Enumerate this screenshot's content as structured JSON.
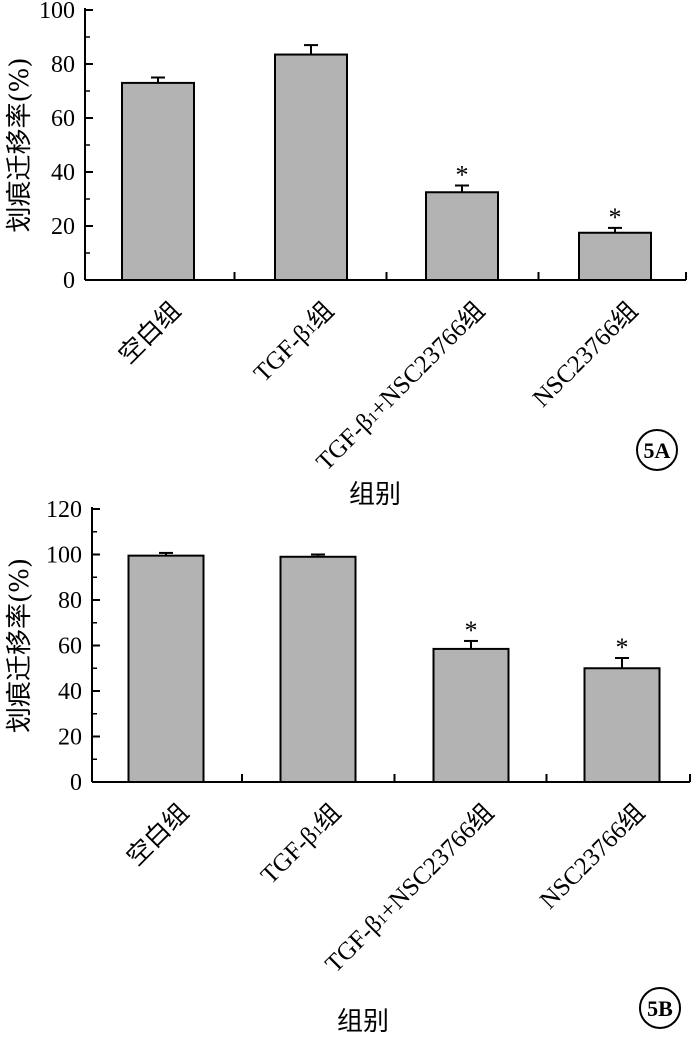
{
  "chart_data": [
    {
      "type": "bar",
      "panel_label": "5A",
      "ylabel": "划痕迁移率(%)",
      "xlabel": "组别",
      "ylim": [
        0,
        100
      ],
      "yticks": [
        "0",
        "20",
        "40",
        "60",
        "80",
        "100"
      ],
      "categories": [
        {
          "text": "空白组"
        },
        {
          "text": "TGF-β",
          "sub": "1",
          "tail": "组"
        },
        {
          "text": "TGF-β",
          "sub": "1",
          "tail": "+NSC23766组"
        },
        {
          "text": "NSC23766组"
        }
      ],
      "values": [
        73,
        83.5,
        32.5,
        17.5
      ],
      "errors": [
        2,
        3.5,
        2.5,
        1.8
      ],
      "significance": [
        "",
        "",
        "*",
        "*"
      ],
      "bar_color": "#b3b3b3"
    },
    {
      "type": "bar",
      "panel_label": "5B",
      "ylabel": "划痕迁移率(%)",
      "xlabel": "组别",
      "ylim": [
        0,
        120
      ],
      "yticks": [
        "0",
        "20",
        "40",
        "60",
        "80",
        "100",
        "120"
      ],
      "categories": [
        {
          "text": "空白组"
        },
        {
          "text": "TGF-β",
          "sub": "1",
          "tail": "组"
        },
        {
          "text": "TGF-β",
          "sub": "1",
          "tail": "+NSC23766组"
        },
        {
          "text": "NSC23766组"
        }
      ],
      "values": [
        99.5,
        99,
        58.5,
        50
      ],
      "errors": [
        1.2,
        1,
        3.5,
        4.5
      ],
      "significance": [
        "",
        "",
        "*",
        "*"
      ],
      "bar_color": "#b3b3b3"
    }
  ]
}
